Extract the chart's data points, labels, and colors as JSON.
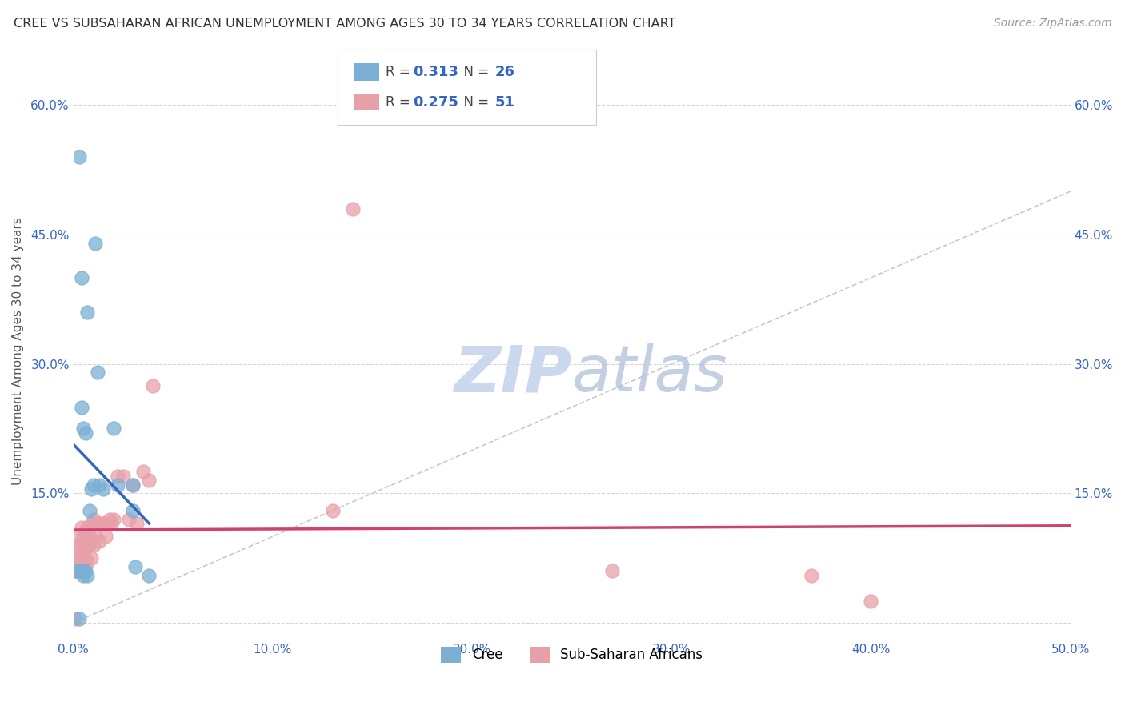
{
  "title": "CREE VS SUBSAHARAN AFRICAN UNEMPLOYMENT AMONG AGES 30 TO 34 YEARS CORRELATION CHART",
  "source": "Source: ZipAtlas.com",
  "ylabel": "Unemployment Among Ages 30 to 34 years",
  "xlim": [
    0.0,
    0.5
  ],
  "ylim": [
    -0.02,
    0.65
  ],
  "xticks": [
    0.0,
    0.1,
    0.2,
    0.3,
    0.4,
    0.5
  ],
  "yticks": [
    0.0,
    0.15,
    0.3,
    0.45,
    0.6
  ],
  "xtick_labels": [
    "0.0%",
    "10.0%",
    "20.0%",
    "30.0%",
    "40.0%",
    "50.0%"
  ],
  "ytick_labels": [
    "",
    "15.0%",
    "30.0%",
    "45.0%",
    "60.0%"
  ],
  "cree_R": "0.313",
  "cree_N": "26",
  "ssa_R": "0.275",
  "ssa_N": "51",
  "cree_color": "#7bafd4",
  "ssa_color": "#e8a0a8",
  "line_color_cree": "#3465c0",
  "line_color_ssa": "#d04070",
  "diagonal_color": "#bbbbbb",
  "watermark_zip_color": "#ccd8ee",
  "watermark_atlas_color": "#aabcd8",
  "cree_x": [
    0.001,
    0.002,
    0.003,
    0.003,
    0.004,
    0.004,
    0.005,
    0.005,
    0.005,
    0.006,
    0.006,
    0.007,
    0.007,
    0.008,
    0.009,
    0.01,
    0.011,
    0.012,
    0.013,
    0.015,
    0.02,
    0.022,
    0.03,
    0.03,
    0.031,
    0.038
  ],
  "cree_y": [
    0.06,
    0.06,
    0.54,
    0.005,
    0.4,
    0.25,
    0.225,
    0.06,
    0.055,
    0.22,
    0.06,
    0.36,
    0.055,
    0.13,
    0.155,
    0.16,
    0.44,
    0.29,
    0.16,
    0.155,
    0.225,
    0.16,
    0.16,
    0.13,
    0.065,
    0.055
  ],
  "ssa_x": [
    0.001,
    0.001,
    0.002,
    0.002,
    0.002,
    0.002,
    0.003,
    0.003,
    0.003,
    0.003,
    0.004,
    0.004,
    0.004,
    0.005,
    0.005,
    0.005,
    0.006,
    0.006,
    0.006,
    0.007,
    0.007,
    0.007,
    0.008,
    0.008,
    0.009,
    0.009,
    0.01,
    0.01,
    0.011,
    0.012,
    0.013,
    0.014,
    0.015,
    0.016,
    0.017,
    0.018,
    0.019,
    0.02,
    0.022,
    0.025,
    0.028,
    0.03,
    0.032,
    0.035,
    0.038,
    0.04,
    0.13,
    0.14,
    0.27,
    0.37,
    0.4
  ],
  "ssa_y": [
    0.005,
    0.06,
    0.06,
    0.065,
    0.075,
    0.09,
    0.06,
    0.075,
    0.09,
    0.1,
    0.06,
    0.075,
    0.11,
    0.06,
    0.08,
    0.1,
    0.075,
    0.09,
    0.105,
    0.07,
    0.09,
    0.11,
    0.09,
    0.1,
    0.075,
    0.115,
    0.09,
    0.12,
    0.1,
    0.115,
    0.095,
    0.115,
    0.115,
    0.1,
    0.115,
    0.12,
    0.115,
    0.12,
    0.17,
    0.17,
    0.12,
    0.16,
    0.115,
    0.175,
    0.165,
    0.275,
    0.13,
    0.48,
    0.06,
    0.055,
    0.025
  ],
  "grid_color": "#cccccc",
  "background_color": "#ffffff",
  "tick_color": "#3465c0"
}
